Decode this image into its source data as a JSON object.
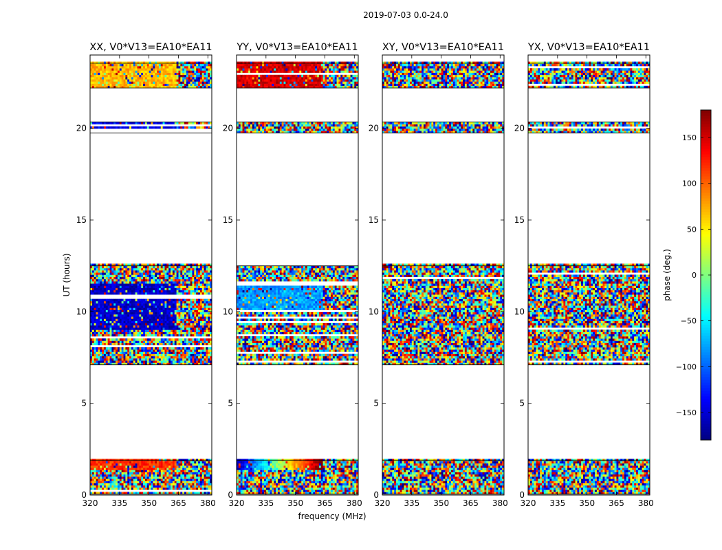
{
  "figure": {
    "suptitle": "2019-07-03 0.0-24.0",
    "ylabel": "UT (hours)",
    "xlabel": "frequency (MHz)",
    "colorbar_label": "phase (deg.)"
  },
  "chart_data": {
    "type": "heatmap",
    "colormap": "jet",
    "xlim": [
      320,
      382
    ],
    "ylim": [
      0,
      24
    ],
    "xticks": [
      320,
      335,
      350,
      365,
      380
    ],
    "yticks": [
      0,
      5,
      10,
      15,
      20
    ],
    "colorbar": {
      "range": [
        -180,
        180
      ],
      "ticks": [
        150,
        100,
        50,
        0,
        -50,
        -100,
        -150
      ],
      "tick_labels": [
        "150",
        "100",
        "50",
        "0",
        "−50",
        "−100",
        "−150"
      ]
    },
    "panels": [
      {
        "title": "XX, V0*V13=EA10*EA11",
        "pol": "XX"
      },
      {
        "title": "YY, V0*V13=EA10*EA11",
        "pol": "YY"
      },
      {
        "title": "XY, V0*V13=EA10*EA11",
        "pol": "XY"
      },
      {
        "title": "YX, V0*V13=EA10*EA11",
        "pol": "YX"
      }
    ],
    "observed_time_ranges_hours": [
      [
        0.05,
        1.9
      ],
      [
        7.1,
        12.5
      ],
      [
        19.75,
        20.35
      ],
      [
        22.2,
        23.55
      ]
    ]
  }
}
